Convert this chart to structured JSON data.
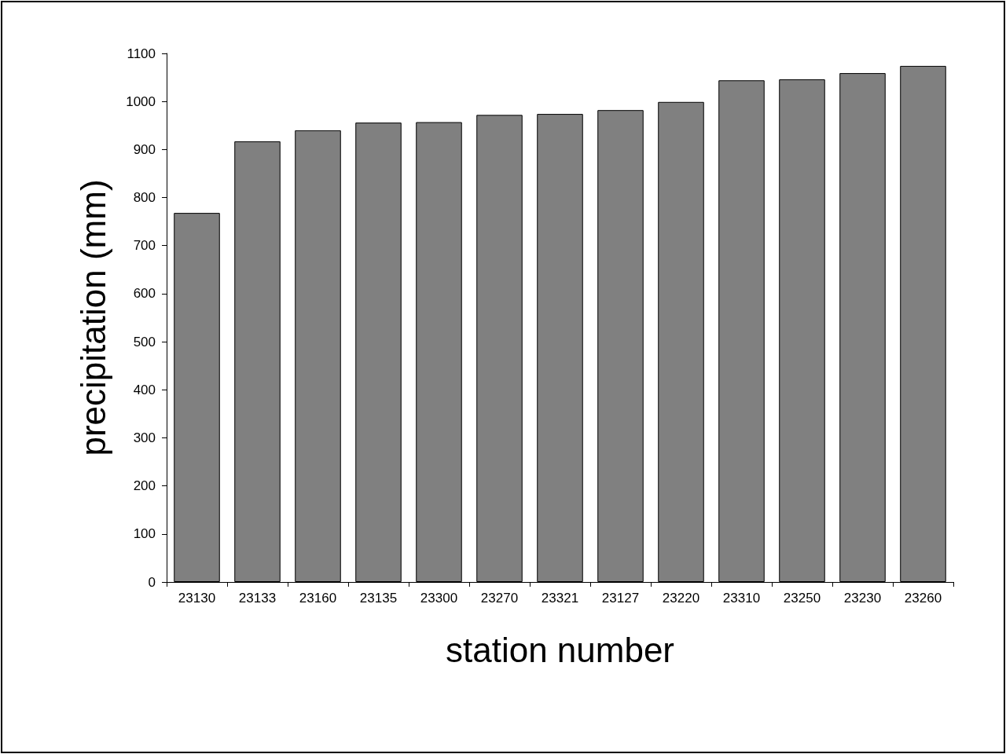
{
  "chart_data": {
    "type": "bar",
    "xlabel": "station number",
    "ylabel": "precipitation (mm)",
    "categories": [
      "23130",
      "23133",
      "23160",
      "23135",
      "23300",
      "23270",
      "23321",
      "23127",
      "23220",
      "23310",
      "23250",
      "23230",
      "23260"
    ],
    "values": [
      768,
      917,
      940,
      956,
      957,
      972,
      974,
      982,
      999,
      1044,
      1046,
      1059,
      1074
    ],
    "color": "#808080",
    "ylim": [
      0,
      1100
    ],
    "yticks": [
      0,
      100,
      200,
      300,
      400,
      500,
      600,
      700,
      800,
      900,
      1000,
      1100
    ],
    "grid": false
  }
}
